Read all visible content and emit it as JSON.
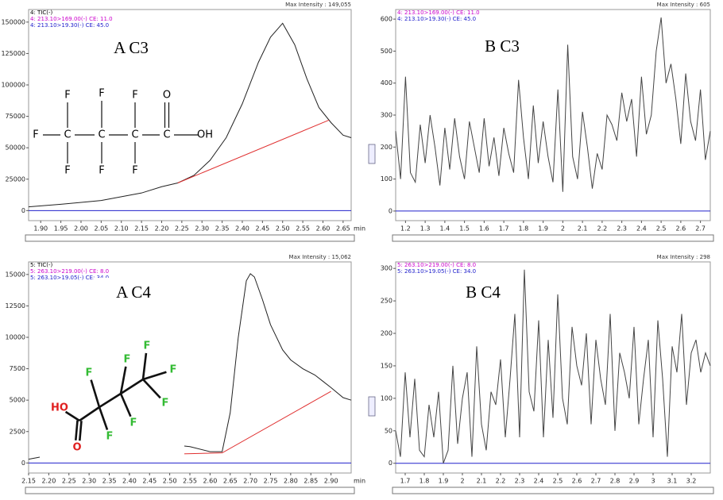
{
  "chart_data": [
    {
      "type": "line",
      "title": "A C3",
      "max_intensity": "Max Intensity : 149,055",
      "header": [
        {
          "text": "4: TIC(-)",
          "color": "#000000"
        },
        {
          "text": "4: 213.10>169.00(-) CE: 11.0",
          "color": "#cc00cc"
        },
        {
          "text": "4: 213.10>19.30(-) CE: 45.0",
          "color": "#2020cc"
        }
      ],
      "x_unit": "min",
      "xlim": [
        1.87,
        2.67
      ],
      "ylim": [
        -8000,
        160000
      ],
      "xticks": [
        {
          "value": 1.9,
          "label": "1.90"
        },
        1.95,
        {
          "value": 2,
          "label": "2.00"
        },
        2.05,
        {
          "value": 2.1,
          "label": "2.10"
        },
        2.15,
        {
          "value": 2.2,
          "label": "2.20"
        },
        2.25,
        {
          "value": 2.3,
          "label": "2.30"
        },
        2.35,
        {
          "value": 2.4,
          "label": "2.40"
        },
        2.45,
        {
          "value": 2.5,
          "label": "2.50"
        },
        2.55,
        {
          "value": 2.6,
          "label": "2.60"
        },
        2.65
      ],
      "yticks": [
        0,
        25000,
        50000,
        75000,
        100000,
        125000,
        150000
      ],
      "series": [
        {
          "color": "#2020cc",
          "x": [
            1.87,
            2.67
          ],
          "values": [
            0,
            0
          ]
        },
        {
          "color": "#222222",
          "x": [
            1.87,
            1.95,
            2.05,
            2.15,
            2.2,
            2.24,
            2.28,
            2.32,
            2.36,
            2.4,
            2.44,
            2.47,
            2.5,
            2.53,
            2.56,
            2.59,
            2.62,
            2.65,
            2.67
          ],
          "values": [
            3000,
            5000,
            8000,
            14000,
            19000,
            22000,
            28000,
            40000,
            58000,
            85000,
            118000,
            138000,
            149055,
            132000,
            105000,
            82000,
            70000,
            60000,
            58000
          ]
        },
        {
          "color": "#e03030",
          "x": [
            2.24,
            2.615
          ],
          "values": [
            22000,
            72000
          ]
        }
      ],
      "structure": {
        "atoms": [
          {
            "label": "F",
            "color": "#000000"
          },
          {
            "label": "C",
            "color": "#000000"
          },
          {
            "label": "C",
            "color": "#000000"
          },
          {
            "label": "C",
            "color": "#000000"
          },
          {
            "label": "C",
            "color": "#000000"
          },
          {
            "label": "F",
            "color": "#000000"
          },
          {
            "label": "F",
            "color": "#000000"
          },
          {
            "label": "F",
            "color": "#000000"
          },
          {
            "label": "F",
            "color": "#000000"
          },
          {
            "label": "F",
            "color": "#000000"
          },
          {
            "label": "F",
            "color": "#000000"
          },
          {
            "label": "O",
            "color": "#000000"
          },
          {
            "label": "OH",
            "color": "#000000"
          }
        ]
      }
    },
    {
      "type": "line",
      "title": "B C3",
      "max_intensity": "Max Intensity : 605",
      "header": [
        {
          "text": "4: 213.10>169.00(-) CE: 11.0",
          "color": "#cc00cc"
        },
        {
          "text": "4: 213.10>19.30(-) CE: 45.0",
          "color": "#2020cc"
        }
      ],
      "xlim": [
        1.15,
        2.75
      ],
      "ylim": [
        -30,
        630
      ],
      "xticks": [
        1.2,
        1.3,
        1.4,
        1.5,
        1.6,
        1.7,
        1.8,
        1.9,
        2,
        2.1,
        2.2,
        2.3,
        2.4,
        2.5,
        2.6,
        2.7
      ],
      "yticks": [
        0,
        100,
        200,
        300,
        400,
        500,
        600
      ],
      "series": [
        {
          "color": "#2020cc",
          "x": [
            1.15,
            2.75
          ],
          "values": [
            0,
            0
          ]
        },
        {
          "color": "#444444",
          "x": [
            1.15,
            1.175,
            1.2,
            1.225,
            1.25,
            1.275,
            1.3,
            1.325,
            1.35,
            1.375,
            1.4,
            1.425,
            1.45,
            1.475,
            1.5,
            1.525,
            1.55,
            1.575,
            1.6,
            1.625,
            1.65,
            1.675,
            1.7,
            1.725,
            1.75,
            1.775,
            1.8,
            1.825,
            1.85,
            1.875,
            1.9,
            1.925,
            1.95,
            1.975,
            2,
            2.025,
            2.05,
            2.075,
            2.1,
            2.125,
            2.15,
            2.175,
            2.2,
            2.225,
            2.25,
            2.275,
            2.3,
            2.325,
            2.35,
            2.375,
            2.4,
            2.425,
            2.45,
            2.475,
            2.5,
            2.525,
            2.55,
            2.575,
            2.6,
            2.625,
            2.65,
            2.675,
            2.7,
            2.725,
            2.75
          ],
          "values": [
            250,
            100,
            420,
            120,
            90,
            270,
            150,
            300,
            200,
            80,
            260,
            130,
            290,
            170,
            100,
            280,
            200,
            120,
            290,
            140,
            230,
            110,
            260,
            180,
            120,
            410,
            230,
            100,
            330,
            150,
            280,
            170,
            90,
            380,
            60,
            520,
            170,
            100,
            310,
            200,
            70,
            180,
            130,
            300,
            270,
            220,
            370,
            280,
            350,
            170,
            420,
            240,
            300,
            500,
            605,
            400,
            460,
            350,
            210,
            430,
            280,
            220,
            380,
            160,
            250
          ]
        }
      ]
    },
    {
      "type": "line",
      "title": "A C4",
      "max_intensity": "Max Intensity : 15,062",
      "header": [
        {
          "text": "5: TIC(-)",
          "color": "#000000"
        },
        {
          "text": "5: 263.10>219.00(-) CE: 8.0",
          "color": "#cc00cc"
        },
        {
          "text": "5: 263.10>19.05(-) CE: 34.0",
          "color": "#2020cc"
        }
      ],
      "x_unit": "min",
      "xlim": [
        2.15,
        2.95
      ],
      "ylim": [
        -800,
        16000
      ],
      "xticks": [
        2.15,
        {
          "value": 2.2,
          "label": "2.20"
        },
        2.25,
        {
          "value": 2.3,
          "label": "2.30"
        },
        2.35,
        {
          "value": 2.4,
          "label": "2.40"
        },
        2.45,
        {
          "value": 2.5,
          "label": "2.50"
        },
        2.55,
        {
          "value": 2.6,
          "label": "2.60"
        },
        2.65,
        {
          "value": 2.7,
          "label": "2.70"
        },
        2.75,
        {
          "value": 2.8,
          "label": "2.80"
        },
        2.85,
        {
          "value": 2.9,
          "label": "2.90"
        }
      ],
      "yticks": [
        0,
        2500,
        5000,
        7500,
        10000,
        12500,
        15000
      ],
      "series": [
        {
          "color": "#2020cc",
          "x": [
            2.15,
            2.95
          ],
          "values": [
            0,
            0
          ]
        },
        {
          "color": "#222222",
          "x": [
            2.15,
            2.2,
            2.25,
            2.3,
            2.35,
            2.4,
            2.45,
            2.5,
            2.52,
            2.55,
            2.6,
            2.63,
            2.65,
            2.67,
            2.69,
            2.7,
            2.71,
            2.73,
            2.75,
            2.78,
            2.8,
            2.83,
            2.86,
            2.88,
            2.9,
            2.93,
            2.95
          ],
          "values": [
            300,
            600,
            500,
            700,
            500,
            600,
            900,
            1200,
            1400,
            1300,
            900,
            900,
            4000,
            10000,
            14500,
            15062,
            14800,
            13000,
            11000,
            9000,
            8200,
            7500,
            7000,
            6500,
            6000,
            5200,
            5000
          ]
        },
        {
          "color": "#e03030",
          "x": [
            2.22,
            2.37,
            2.63,
            2.9
          ],
          "values": [
            300,
            600,
            800,
            5700
          ]
        }
      ],
      "structure": {
        "atoms": [
          {
            "label": "HO",
            "color": "#e02020"
          },
          {
            "label": "O",
            "color": "#e02020"
          },
          {
            "label": "F",
            "color": "#33bb33"
          },
          {
            "label": "F",
            "color": "#33bb33"
          },
          {
            "label": "F",
            "color": "#33bb33"
          },
          {
            "label": "F",
            "color": "#33bb33"
          },
          {
            "label": "F",
            "color": "#33bb33"
          },
          {
            "label": "F",
            "color": "#33bb33"
          },
          {
            "label": "F",
            "color": "#33bb33"
          }
        ]
      }
    },
    {
      "type": "line",
      "title": "B C4",
      "max_intensity": "Max Intensity : 298",
      "header": [
        {
          "text": "5: 263.10>219.00(-) CE: 8.0",
          "color": "#cc00cc"
        },
        {
          "text": "5: 263.10>19.05(-) CE: 34.0",
          "color": "#2020cc"
        }
      ],
      "xlim": [
        1.65,
        3.3
      ],
      "ylim": [
        -15,
        310
      ],
      "xticks": [
        1.7,
        1.8,
        1.9,
        2,
        2.1,
        2.2,
        2.3,
        2.4,
        2.5,
        2.6,
        2.7,
        2.8,
        2.9,
        3,
        3.1,
        3.2
      ],
      "yticks": [
        0,
        50,
        100,
        150,
        200,
        250,
        300
      ],
      "series": [
        {
          "color": "#2020cc",
          "x": [
            1.65,
            3.3
          ],
          "values": [
            0,
            0
          ]
        },
        {
          "color": "#444444",
          "x": [
            1.65,
            1.675,
            1.7,
            1.725,
            1.75,
            1.775,
            1.8,
            1.825,
            1.85,
            1.875,
            1.9,
            1.925,
            1.95,
            1.975,
            2,
            2.025,
            2.05,
            2.075,
            2.1,
            2.125,
            2.15,
            2.175,
            2.2,
            2.225,
            2.25,
            2.275,
            2.3,
            2.325,
            2.35,
            2.375,
            2.4,
            2.425,
            2.45,
            2.475,
            2.5,
            2.525,
            2.55,
            2.575,
            2.6,
            2.625,
            2.65,
            2.675,
            2.7,
            2.725,
            2.75,
            2.775,
            2.8,
            2.825,
            2.85,
            2.875,
            2.9,
            2.925,
            2.95,
            2.975,
            3,
            3.025,
            3.05,
            3.075,
            3.1,
            3.125,
            3.15,
            3.175,
            3.2,
            3.225,
            3.25,
            3.275,
            3.3
          ],
          "values": [
            50,
            10,
            140,
            40,
            130,
            20,
            10,
            90,
            40,
            110,
            0,
            20,
            150,
            30,
            100,
            140,
            10,
            180,
            60,
            20,
            110,
            90,
            160,
            40,
            130,
            230,
            40,
            298,
            110,
            80,
            220,
            40,
            190,
            70,
            260,
            100,
            60,
            210,
            150,
            120,
            200,
            60,
            190,
            130,
            90,
            230,
            50,
            170,
            140,
            100,
            210,
            60,
            130,
            190,
            40,
            220,
            130,
            10,
            180,
            140,
            230,
            90,
            170,
            190,
            140,
            170,
            150
          ]
        }
      ]
    }
  ]
}
